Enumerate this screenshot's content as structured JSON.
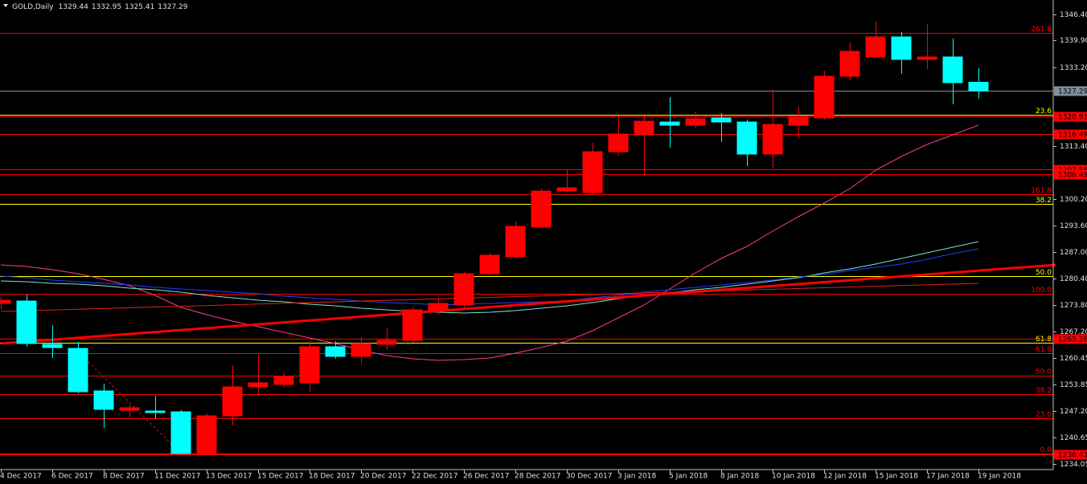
{
  "chart_data": {
    "type": "candlestick",
    "title": "GOLD,Daily",
    "categories": [
      "4 Dec 2017",
      null,
      "6 Dec 2017",
      null,
      "8 Dec 2017",
      null,
      "11 Dec 2017",
      null,
      "13 Dec 2017",
      null,
      "15 Dec 2017",
      null,
      "18 Dec 2017",
      null,
      "20 Dec 2017",
      null,
      "22 Dec 2017",
      null,
      "26 Dec 2017",
      null,
      "28 Dec 2017",
      null,
      "30 Dec 2017",
      null,
      "3 Jan 2018",
      null,
      "5 Jan 2018",
      null,
      "8 Jan 2018",
      null,
      "10 Jan 2018",
      null,
      "12 Jan 2018",
      null,
      "15 Jan 2018",
      null,
      "17 Jan 2018",
      null,
      "19 Jan 2018"
    ],
    "open": [
      1274.17,
      1274.77,
      1263.94,
      1262.93,
      1252.3,
      1247.48,
      1247.28,
      1247.08,
      1236.45,
      1246.08,
      1253.3,
      1253.91,
      1254.31,
      1263.34,
      1260.92,
      1263.94,
      1264.94,
      1272.36,
      1273.77,
      1281.59,
      1285.81,
      1293.23,
      1302.26,
      1301.86,
      1312.09,
      1316.3,
      1319.51,
      1318.71,
      1320.52,
      1319.51,
      1311.49,
      1318.71,
      1320.52,
      1330.95,
      1335.77,
      1340.78,
      1335.16,
      1335.77,
      1329.44
    ],
    "high": [
      1275.77,
      1276.38,
      1268.75,
      1264.54,
      1254.11,
      1248.69,
      1251.1,
      1247.48,
      1246.68,
      1258.72,
      1261.33,
      1256.71,
      1264.74,
      1264.74,
      1265.74,
      1267.95,
      1273.17,
      1275.57,
      1281.99,
      1286.81,
      1294.63,
      1302.86,
      1307.48,
      1314.3,
      1321.12,
      1321.12,
      1325.73,
      1322.12,
      1321.72,
      1320.12,
      1327.54,
      1323.33,
      1332.36,
      1339.38,
      1344.59,
      1341.99,
      1343.99,
      1340.38,
      1332.95
    ],
    "low": [
      1272.76,
      1263.34,
      1260.52,
      1251.7,
      1243.07,
      1245.68,
      1245.28,
      1236.45,
      1236.25,
      1243.67,
      1251.1,
      1253.1,
      1252.1,
      1260.32,
      1259.12,
      1262.53,
      1264.34,
      1271.36,
      1272.97,
      1281.19,
      1285.41,
      1293.03,
      1301.86,
      1301.46,
      1311.09,
      1305.87,
      1313.09,
      1317.91,
      1314.5,
      1308.48,
      1307.88,
      1315.5,
      1320.12,
      1329.95,
      1335.57,
      1331.55,
      1332.76,
      1323.93,
      1325.41
    ],
    "close": [
      1274.97,
      1264.14,
      1263.13,
      1252.1,
      1247.69,
      1248.09,
      1246.88,
      1236.65,
      1246.08,
      1253.3,
      1254.31,
      1255.91,
      1263.34,
      1260.92,
      1264.14,
      1264.94,
      1272.56,
      1274.17,
      1281.59,
      1286.21,
      1293.43,
      1302.26,
      1303.06,
      1312.09,
      1316.5,
      1319.71,
      1318.71,
      1320.32,
      1319.51,
      1311.49,
      1318.91,
      1320.92,
      1330.95,
      1337.17,
      1340.78,
      1335.16,
      1335.77,
      1329.35,
      1327.29
    ],
    "up_color": "#ff0000",
    "down_color": "#00ffff",
    "series": [
      {
        "color": "#ff3c8c",
        "values": [
          1283.8,
          1283.4,
          1282.6,
          1281.59,
          1280.19,
          1278.58,
          1276.18,
          1273.17,
          1271.36,
          1269.76,
          1268.35,
          1266.95,
          1265.54,
          1264.14,
          1262.53,
          1261.13,
          1260.33,
          1259.92,
          1260.13,
          1260.53,
          1261.73,
          1263.13,
          1264.74,
          1267.35,
          1270.56,
          1273.77,
          1277.78,
          1281.79,
          1285.41,
          1288.42,
          1292.23,
          1295.84,
          1299.25,
          1302.86,
          1307.48,
          1310.89,
          1313.9,
          1316.3,
          1318.71
        ]
      },
      {
        "color": "#7fe0d0",
        "values": [
          1279.79,
          1279.59,
          1279.19,
          1278.99,
          1278.58,
          1277.98,
          1277.58,
          1276.98,
          1276.18,
          1275.57,
          1274.97,
          1274.57,
          1273.97,
          1273.57,
          1272.97,
          1272.56,
          1272.16,
          1271.96,
          1271.76,
          1271.96,
          1272.36,
          1272.97,
          1273.57,
          1274.37,
          1275.37,
          1276.18,
          1276.78,
          1277.58,
          1278.18,
          1278.99,
          1279.79,
          1280.59,
          1281.79,
          1282.8,
          1284.0,
          1285.41,
          1286.81,
          1288.22,
          1289.62
        ]
      },
      {
        "color": "#2040ff",
        "values": [
          1280.99,
          1280.59,
          1279.99,
          1279.59,
          1279.19,
          1278.78,
          1278.18,
          1277.78,
          1277.38,
          1276.98,
          1276.58,
          1275.97,
          1275.57,
          1275.17,
          1274.77,
          1274.37,
          1274.17,
          1273.77,
          1273.97,
          1274.17,
          1274.37,
          1274.57,
          1274.77,
          1275.57,
          1276.18,
          1276.98,
          1277.58,
          1278.18,
          1278.78,
          1279.39,
          1279.99,
          1280.79,
          1281.39,
          1282.4,
          1283.2,
          1284.0,
          1285.21,
          1286.61,
          1287.82
        ]
      }
    ],
    "trendlines": [
      {
        "color": "#ff0000",
        "style": "thick",
        "x": [
          0,
          41
        ],
        "values": [
          1264.14,
          1283.8
        ]
      },
      {
        "color": "#e02020",
        "style": "solid",
        "x": [
          0,
          38
        ],
        "values": [
          1272.16,
          1279.19
        ]
      },
      {
        "color": "#ff0000",
        "style": "dashed",
        "x": [
          3,
          7
        ],
        "values": [
          1262.13,
          1236.65
        ]
      }
    ],
    "levels": [
      {
        "value": 1341.79,
        "tag": "261.8",
        "color": "#ff0000"
      },
      {
        "value": 1321.32,
        "tag": "23.6",
        "color": "#ffff00"
      },
      {
        "value": 1301.46,
        "tag": "161.8",
        "color": "#ff0000"
      },
      {
        "value": 1299.05,
        "tag": "38.2",
        "color": "#ffff00"
      },
      {
        "value": 1280.99,
        "tag": "50.0",
        "color": "#ffff00"
      },
      {
        "value": 1276.58,
        "tag": "100.0",
        "color": "#ff0000"
      },
      {
        "value": 1264.34,
        "tag": "61.8",
        "color": "#ffff00"
      },
      {
        "value": 1261.73,
        "tag": "61.8",
        "color": "#ff0000"
      },
      {
        "value": 1256.11,
        "tag": "50.0",
        "color": "#ff0000"
      },
      {
        "value": 1251.5,
        "tag": "38.2",
        "color": "#ff0000"
      },
      {
        "value": 1245.48,
        "tag": "23.6",
        "color": "#ff0000"
      },
      {
        "value": 1236.63,
        "tag": "0.0",
        "color": "#ff0000"
      }
    ],
    "price_lines": [
      {
        "value": 1327.29,
        "color": "#8090a0"
      },
      {
        "value": 1320.91,
        "color": "#ff0000"
      },
      {
        "value": 1316.49,
        "color": "#ff0000"
      },
      {
        "value": 1307.58,
        "color": "#ff0000"
      },
      {
        "value": 1306.49,
        "color": "#ff0000"
      },
      {
        "value": 1265.26,
        "color": "#ff0000"
      },
      {
        "value": 1236.43,
        "color": "#ff0000"
      }
    ],
    "ylim": [
      1232.64,
      1350.01
    ],
    "yticks": [
      {
        "value": 1346.4,
        "label": "1346.40"
      },
      {
        "value": 1339.9,
        "label": "1339.90"
      },
      {
        "value": 1333.2,
        "label": "1333.20"
      },
      {
        "value": 1313.4,
        "label": "1313.40"
      },
      {
        "value": 1300.2,
        "label": "1300.20"
      },
      {
        "value": 1293.6,
        "label": "1293.60"
      },
      {
        "value": 1287.0,
        "label": "1287.00"
      },
      {
        "value": 1280.4,
        "label": "1280.40"
      },
      {
        "value": 1273.8,
        "label": "1273.80"
      },
      {
        "value": 1267.2,
        "label": "1267.20"
      },
      {
        "value": 1260.45,
        "label": "1260.45"
      },
      {
        "value": 1253.85,
        "label": "1253.85"
      },
      {
        "value": 1247.2,
        "label": "1247.20"
      },
      {
        "value": 1240.65,
        "label": "1240.65"
      },
      {
        "value": 1234.05,
        "label": "1234.05"
      }
    ]
  }
}
